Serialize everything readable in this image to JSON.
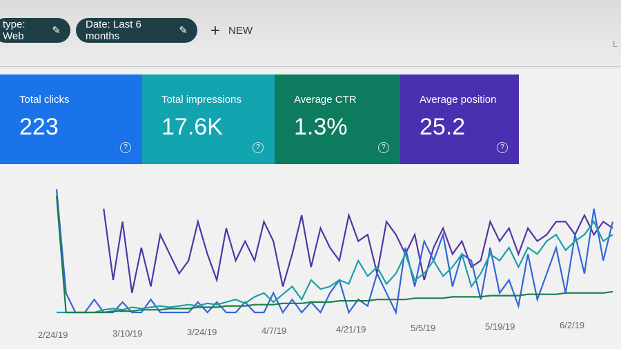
{
  "filters": {
    "type_label": "type: Web",
    "date_label": "Date: Last 6 months",
    "new_label": "NEW",
    "right_label": "L"
  },
  "cards": [
    {
      "title": "Total clicks",
      "value": "223",
      "color": "#1a73e8"
    },
    {
      "title": "Total impressions",
      "value": "17.6K",
      "color": "#12a4af"
    },
    {
      "title": "Average CTR",
      "value": "1.3%",
      "color": "#0d7b5e"
    },
    {
      "title": "Average position",
      "value": "25.2",
      "color": "#4a2fb0"
    }
  ],
  "chart_data": {
    "type": "line",
    "x_tick_labels": [
      "2/24/19",
      "3/10/19",
      "3/24/19",
      "4/7/19",
      "4/21/19",
      "5/5/19",
      "5/19/19",
      "6/2/19"
    ],
    "series": [
      {
        "color": "#5035a6",
        "values": [
          null,
          null,
          null,
          null,
          null,
          80,
          25,
          70,
          15,
          50,
          20,
          60,
          45,
          30,
          40,
          70,
          45,
          25,
          65,
          40,
          55,
          40,
          70,
          55,
          20,
          45,
          75,
          35,
          65,
          50,
          40,
          75,
          55,
          60,
          30,
          70,
          60,
          45,
          60,
          25,
          50,
          65,
          45,
          55,
          35,
          40,
          70,
          55,
          65,
          45,
          65,
          55,
          60,
          70,
          70,
          60,
          75,
          60,
          70,
          65
        ]
      },
      {
        "color": "#3266d6",
        "values": [
          95,
          15,
          0,
          0,
          10,
          0,
          0,
          8,
          0,
          0,
          10,
          0,
          0,
          0,
          0,
          8,
          0,
          8,
          0,
          0,
          8,
          0,
          0,
          15,
          0,
          10,
          0,
          8,
          0,
          15,
          25,
          0,
          10,
          5,
          30,
          15,
          0,
          50,
          20,
          55,
          40,
          60,
          20,
          45,
          40,
          10,
          50,
          15,
          25,
          5,
          45,
          10,
          30,
          50,
          15,
          60,
          30,
          80,
          40,
          70
        ]
      },
      {
        "color": "#19a0a8",
        "values": [
          0,
          0,
          0,
          0,
          0,
          2,
          3,
          2,
          4,
          3,
          4,
          5,
          4,
          5,
          6,
          5,
          7,
          6,
          8,
          10,
          7,
          12,
          15,
          8,
          14,
          20,
          10,
          25,
          18,
          20,
          25,
          22,
          40,
          28,
          35,
          22,
          30,
          45,
          25,
          30,
          40,
          28,
          35,
          45,
          20,
          30,
          45,
          40,
          50,
          35,
          50,
          45,
          55,
          60,
          48,
          55,
          60,
          70,
          55,
          60
        ]
      },
      {
        "color": "#1e7e4a",
        "values": [
          90,
          0,
          0,
          0,
          0,
          0,
          1,
          1,
          1,
          2,
          2,
          2,
          3,
          3,
          3,
          4,
          4,
          4,
          5,
          5,
          5,
          6,
          6,
          6,
          7,
          7,
          7,
          8,
          8,
          8,
          9,
          9,
          9,
          9,
          10,
          10,
          10,
          10,
          11,
          11,
          11,
          11,
          12,
          12,
          12,
          12,
          13,
          13,
          13,
          13,
          14,
          14,
          14,
          14,
          15,
          15,
          15,
          15,
          15,
          16
        ]
      }
    ]
  }
}
